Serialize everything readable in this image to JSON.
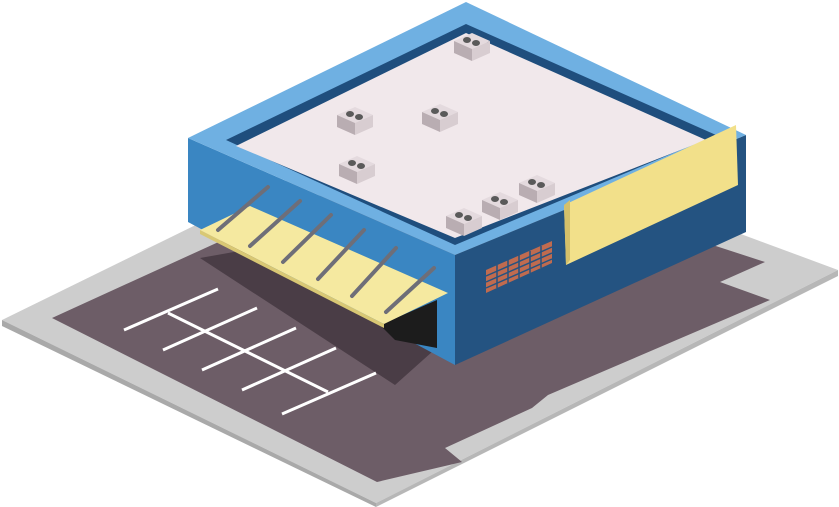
{
  "scene": {
    "subject": "isometric-store-building",
    "colors": {
      "background": "#ffffff",
      "sidewalk": "#cdcdcd",
      "sidewalk_edge": "#a9a9a9",
      "asphalt": "#6d5d67",
      "asphalt_shadow": "#4a3d46",
      "parking_lines": "#ffffff",
      "wall_front_left": "#3a86c2",
      "wall_front_right": "#245381",
      "roof_rim": "#6fb0e2",
      "roof_rim_inner": "#1f4e7d",
      "roof": "#f1e8eb",
      "roof_unit": "#d8cdd1",
      "roof_unit_side": "#b9adb2",
      "roof_unit_fan": "#5a5a5a",
      "sign": "#f2e08a",
      "sign_side": "#d4c06a",
      "awning": "#f5e9a0",
      "awning_struts": "#6e6e78",
      "doorway": "#1c1c1c",
      "window_grille": "#c06b4f"
    },
    "parking_spaces": 8,
    "roof_units": 7,
    "awning_struts": 6
  }
}
